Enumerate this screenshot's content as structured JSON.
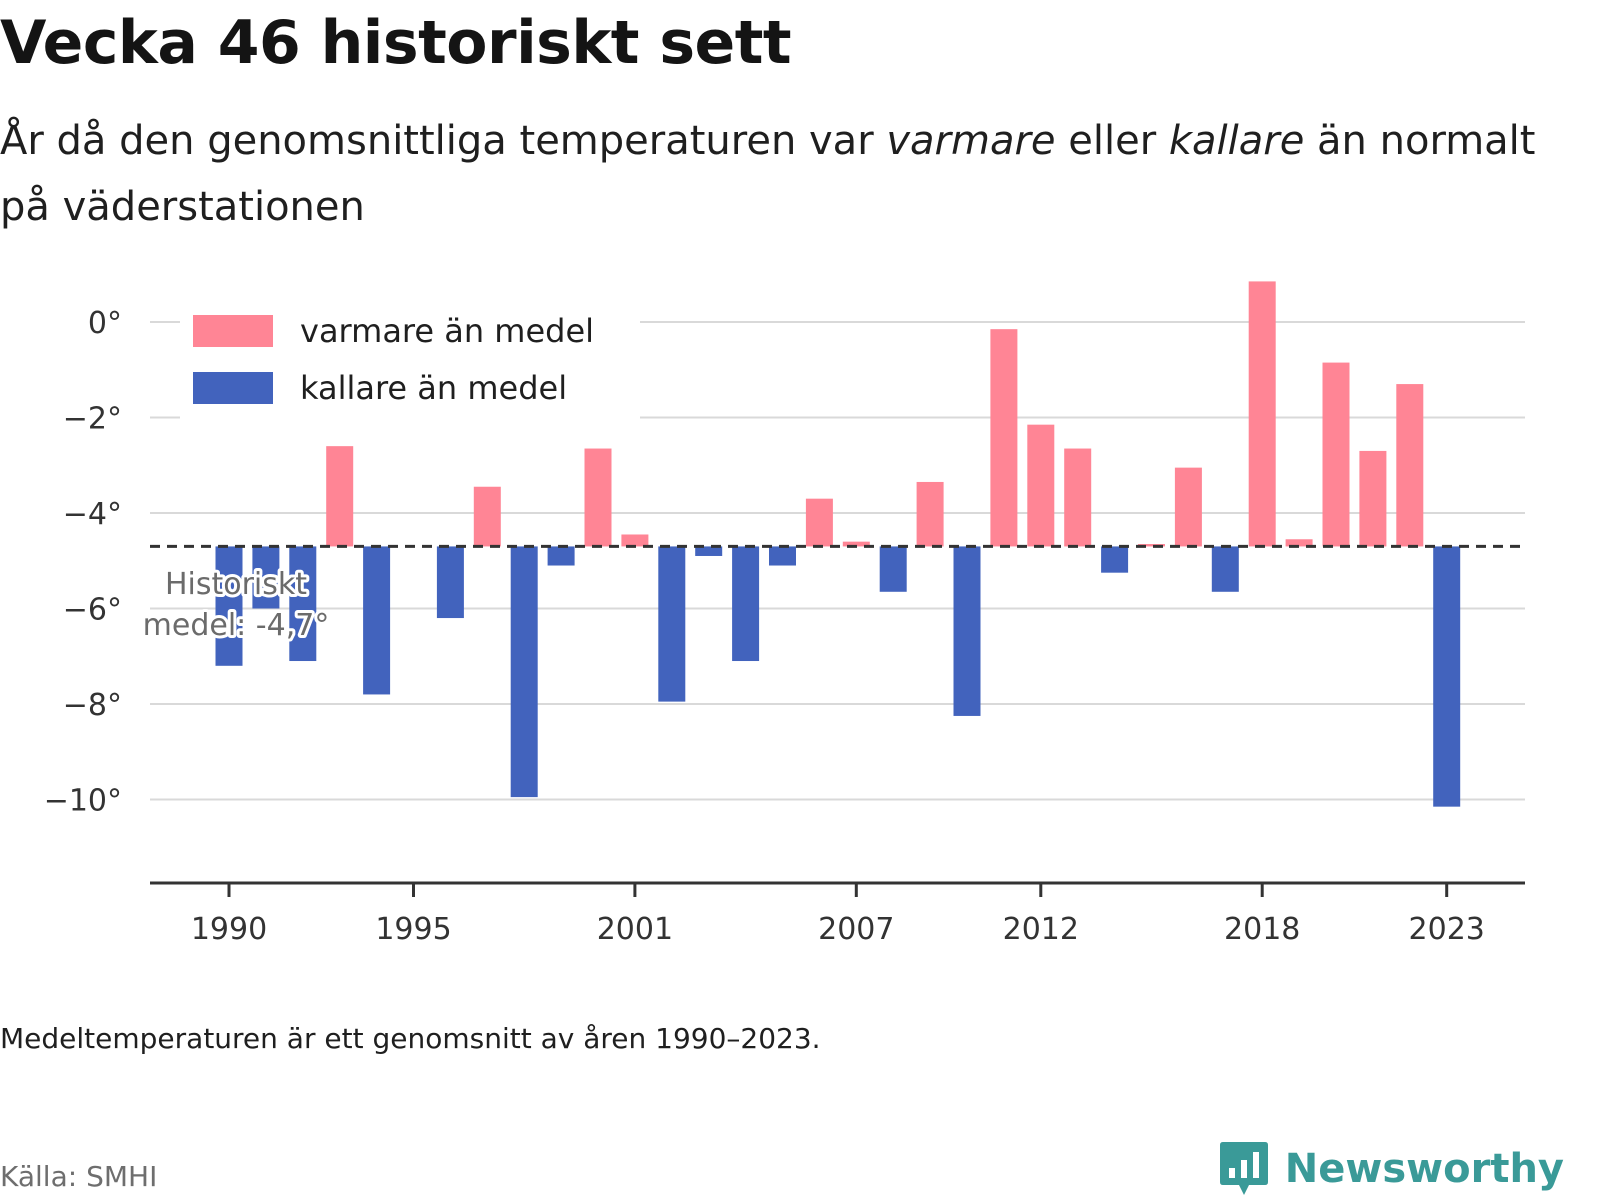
{
  "header": {
    "title": "Vecka 46 historiskt sett",
    "subtitle_part1": "År då den genomsnittliga temperaturen var ",
    "subtitle_em1": "varmare",
    "subtitle_part2": " eller ",
    "subtitle_em2": "kallare",
    "subtitle_part3": " än normalt på väderstationen"
  },
  "footer": {
    "note": "Medeltemperaturen är ett genomsnitt av åren 1990–2023.",
    "source": "Källa: SMHI",
    "brand": "Newsworthy",
    "brand_icon": "bar-chart-logo-icon"
  },
  "colors": {
    "warm": "#ff8595",
    "cold": "#4263bd",
    "baseline": "#333333",
    "grid": "#d9d9d9"
  },
  "chart_data": {
    "type": "bar",
    "baseline": -4.7,
    "baseline_label_line1": "Historiskt",
    "baseline_label_line2": "medel: -4,7°",
    "ylim": [
      -11.5,
      1.2
    ],
    "yticks": [
      0,
      -2,
      -4,
      -6,
      -8,
      -10
    ],
    "ytick_labels": [
      "0°",
      "−2°",
      "−4°",
      "−6°",
      "−8°",
      "−10°"
    ],
    "xticks": [
      1990,
      1995,
      2001,
      2007,
      2012,
      2018,
      2023
    ],
    "xtick_labels": [
      "1990",
      "1995",
      "2001",
      "2007",
      "2012",
      "2018",
      "2023"
    ],
    "legend": [
      {
        "label": "varmare än medel",
        "color": "#ff8595"
      },
      {
        "label": "kallare än medel",
        "color": "#4263bd"
      }
    ],
    "legend_position": "top-left",
    "grid": true,
    "x": [
      1990,
      1991,
      1992,
      1993,
      1994,
      1996,
      1997,
      1998,
      1999,
      2000,
      2001,
      2002,
      2003,
      2004,
      2005,
      2006,
      2007,
      2008,
      2009,
      2010,
      2011,
      2012,
      2013,
      2014,
      2015,
      2016,
      2017,
      2018,
      2019,
      2020,
      2021,
      2022,
      2023
    ],
    "values": [
      -7.2,
      -6.0,
      -7.1,
      -2.6,
      -7.8,
      -6.2,
      -3.45,
      -9.95,
      -5.1,
      -2.65,
      -4.45,
      -7.95,
      -4.9,
      -7.1,
      -5.1,
      -3.7,
      -4.6,
      -5.65,
      -3.35,
      -8.25,
      -0.15,
      -2.15,
      -2.65,
      -5.25,
      -4.65,
      -3.05,
      -5.65,
      0.85,
      -4.55,
      -0.85,
      -2.7,
      -1.3,
      -10.15
    ]
  }
}
